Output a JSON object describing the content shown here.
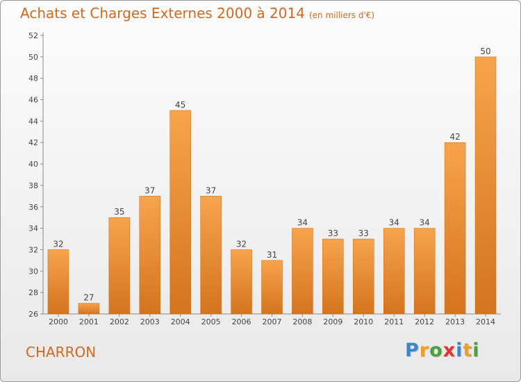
{
  "title": "Achats et Charges Externes 2000 à 2014",
  "subtitle": "(en milliers d'€)",
  "place": "CHARRON",
  "logo": {
    "letters": [
      "P",
      "r",
      "o",
      "x",
      "i",
      "t",
      "i"
    ],
    "colors": [
      "#3a87c8",
      "#f0a020",
      "#4aa03c",
      "#e0362b",
      "#3a87c8",
      "#f0a020",
      "#4aa03c"
    ]
  },
  "colors": {
    "accent": "#d2691e",
    "bar": "#f0a04a",
    "bar_dark": "#d87a22"
  },
  "chart_data": {
    "type": "bar",
    "title": "Achats et Charges Externes 2000 à 2014",
    "subtitle": "(en milliers d'€)",
    "categories": [
      "2000",
      "2001",
      "2002",
      "2003",
      "2004",
      "2005",
      "2006",
      "2007",
      "2008",
      "2009",
      "2010",
      "2011",
      "2012",
      "2013",
      "2014"
    ],
    "values": [
      32,
      27,
      35,
      37,
      45,
      37,
      32,
      31,
      34,
      33,
      33,
      34,
      34,
      42,
      50
    ],
    "ylim": [
      26,
      52
    ],
    "yticks": [
      26,
      28,
      30,
      32,
      34,
      36,
      38,
      40,
      42,
      44,
      46,
      48,
      50,
      52
    ],
    "grid": false,
    "data_labels": true
  }
}
